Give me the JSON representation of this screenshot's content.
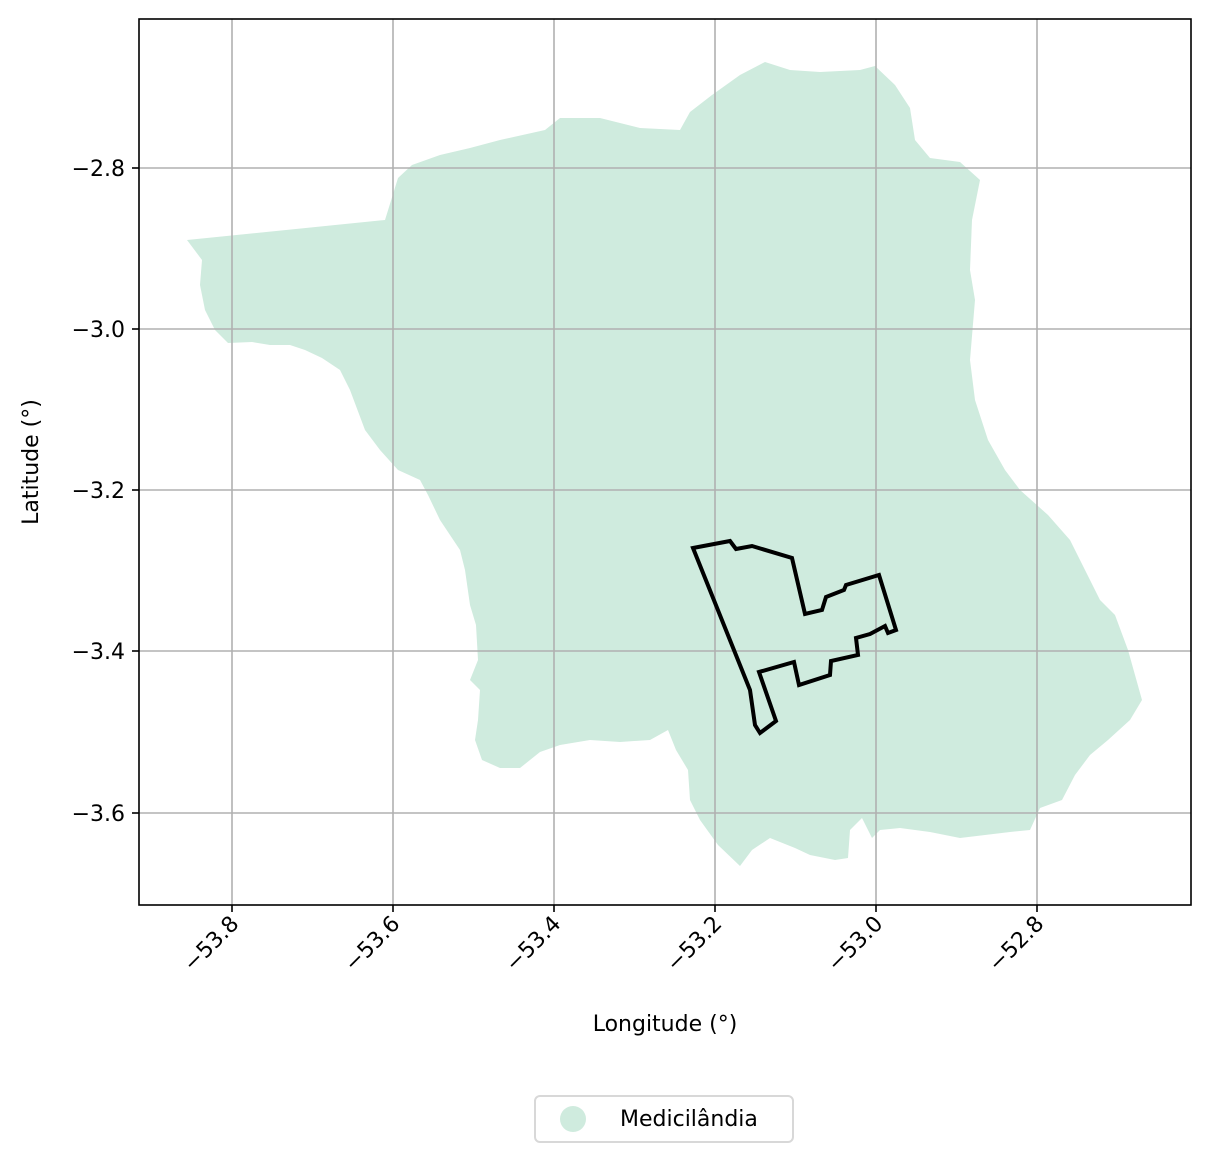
{
  "map": {
    "xlabel": "Longitude (°)",
    "ylabel": "Latitude (°)",
    "grid": true,
    "xlim": [
      -53.915,
      -52.61
    ],
    "ylim": [
      -3.72,
      -2.615
    ],
    "xticks": [
      -53.8,
      -53.6,
      -53.4,
      -53.2,
      -53.0,
      -52.8
    ],
    "yticks": [
      -2.8,
      -3.0,
      -3.2,
      -3.4,
      -3.6
    ],
    "xtick_labels": [
      "−53.8",
      "−53.6",
      "−53.4",
      "−53.2",
      "−53.0",
      "−52.8"
    ],
    "ytick_labels": [
      "−2.8",
      "−3.0",
      "−3.2",
      "−3.4",
      "−3.6"
    ],
    "municipality_color": "#cfebde",
    "outline_color": "#000000",
    "grid_color": "#b0b0b0"
  },
  "legend": {
    "label": "Medicilândia",
    "position": "bottom-center"
  }
}
